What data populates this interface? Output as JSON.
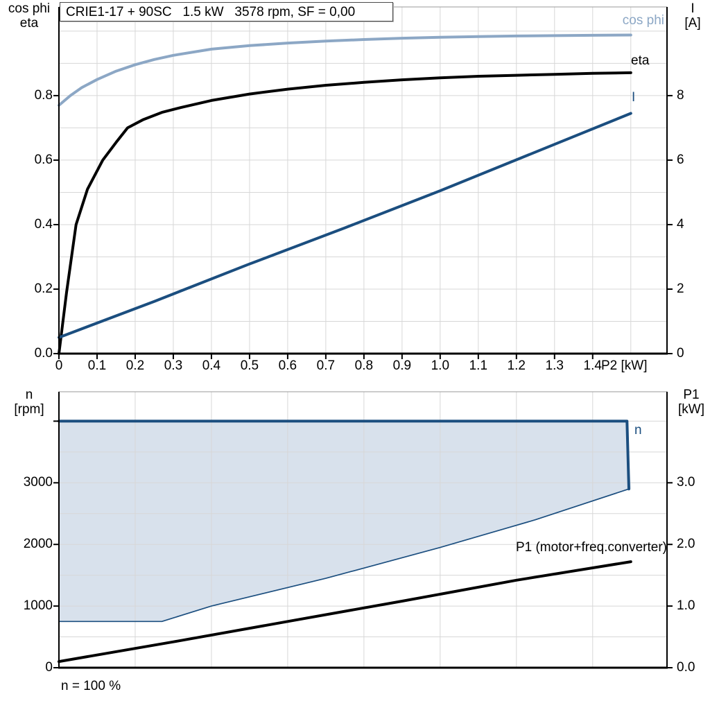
{
  "title_box": "CRIE1-17 + 90SC   1.5 kW   3578 rpm, SF = 0,00",
  "colors": {
    "black": "#000000",
    "dark_blue": "#1B4E7F",
    "light_blue": "#8CA7C5",
    "fill_blue": "#D8E1EC",
    "grid": "#D7D7D7",
    "frame": "#9A9A9A"
  },
  "top_chart": {
    "left_axis_title": "cos phi\neta",
    "right_axis_title": "I\n[A]",
    "x_axis_title": "P2 [kW]",
    "curve_labels": {
      "cos_phi": "cos phi",
      "eta": "eta",
      "current": "I"
    }
  },
  "bottom_chart": {
    "left_axis_title": "n\n[rpm]",
    "right_axis_title": "P1\n[kW]",
    "curve_labels": {
      "n": "n",
      "p1": "P1 (motor+freq.converter)"
    },
    "footnote": "n = 100 %"
  },
  "chart_data": [
    {
      "type": "line",
      "title": "CRIE1-17 + 90SC  1.5 kW  3578 rpm, SF = 0,00",
      "xlabel": "P2 [kW]",
      "grid": true,
      "x_range": [
        0,
        1.595
      ],
      "x_grid_step": 0.1,
      "xticks": {
        "values": [
          0,
          0.1,
          0.2,
          0.3,
          0.4,
          0.5,
          0.6,
          0.7,
          0.8,
          0.9,
          1.0,
          1.1,
          1.2,
          1.3,
          1.4
        ],
        "labels": [
          "0",
          "0.1",
          "0.2",
          "0.3",
          "0.4",
          "0.5",
          "0.6",
          "0.7",
          "0.8",
          "0.9",
          "1.0",
          "1.1",
          "1.2",
          "1.3",
          "1.4"
        ]
      },
      "left_axis": {
        "label": "cos phi / eta",
        "range": [
          0,
          1.075
        ],
        "grid_step": 0.1,
        "ticks": {
          "values": [
            0.0,
            0.2,
            0.4,
            0.6,
            0.8
          ],
          "labels": [
            "0.0",
            "0.2",
            "0.4",
            "0.6",
            "0.8"
          ]
        }
      },
      "right_axis": {
        "label": "I [A]",
        "range": [
          0,
          10.75
        ],
        "ticks": {
          "values": [
            0,
            2,
            4,
            6,
            8
          ],
          "labels": [
            "0",
            "2",
            "4",
            "6",
            "8"
          ]
        }
      },
      "series": [
        {
          "name": "cos phi",
          "axis": "left",
          "color": "light_blue",
          "width": 4,
          "points": [
            [
              0,
              0.77
            ],
            [
              0.03,
              0.8
            ],
            [
              0.06,
              0.825
            ],
            [
              0.1,
              0.85
            ],
            [
              0.15,
              0.876
            ],
            [
              0.2,
              0.896
            ],
            [
              0.25,
              0.912
            ],
            [
              0.3,
              0.925
            ],
            [
              0.4,
              0.944
            ],
            [
              0.5,
              0.955
            ],
            [
              0.6,
              0.963
            ],
            [
              0.7,
              0.969
            ],
            [
              0.8,
              0.974
            ],
            [
              0.9,
              0.978
            ],
            [
              1.0,
              0.981
            ],
            [
              1.1,
              0.983
            ],
            [
              1.2,
              0.985
            ],
            [
              1.3,
              0.986
            ],
            [
              1.4,
              0.987
            ],
            [
              1.5,
              0.988
            ]
          ]
        },
        {
          "name": "eta",
          "axis": "left",
          "color": "black",
          "width": 4,
          "points": [
            [
              0,
              0
            ],
            [
              0.02,
              0.19
            ],
            [
              0.045,
              0.4
            ],
            [
              0.075,
              0.51
            ],
            [
              0.115,
              0.6
            ],
            [
              0.15,
              0.655
            ],
            [
              0.18,
              0.7
            ],
            [
              0.22,
              0.725
            ],
            [
              0.27,
              0.748
            ],
            [
              0.32,
              0.763
            ],
            [
              0.4,
              0.785
            ],
            [
              0.5,
              0.805
            ],
            [
              0.6,
              0.82
            ],
            [
              0.7,
              0.832
            ],
            [
              0.8,
              0.841
            ],
            [
              0.9,
              0.849
            ],
            [
              1.0,
              0.855
            ],
            [
              1.1,
              0.86
            ],
            [
              1.2,
              0.863
            ],
            [
              1.3,
              0.866
            ],
            [
              1.4,
              0.869
            ],
            [
              1.5,
              0.871
            ]
          ]
        },
        {
          "name": "I",
          "axis": "right",
          "color": "dark_blue",
          "width": 4,
          "points": [
            [
              0,
              0.5
            ],
            [
              0.25,
              1.62
            ],
            [
              0.5,
              2.78
            ],
            [
              0.75,
              3.9
            ],
            [
              1.0,
              5.05
            ],
            [
              1.25,
              6.25
            ],
            [
              1.5,
              7.45
            ]
          ]
        }
      ]
    },
    {
      "type": "line+area",
      "xlabel": "",
      "footnote": "n = 100 %",
      "grid": true,
      "x_range": [
        0,
        1.595
      ],
      "x_grid_step": 0.2,
      "xticks": {
        "values": [],
        "labels": []
      },
      "left_axis": {
        "label": "n [rpm]",
        "range": [
          0,
          4477
        ],
        "grid_step": 500,
        "ticks": {
          "values": [
            0,
            1000,
            2000,
            3000,
            4000
          ],
          "labels": [
            "0",
            "1000",
            "2000",
            "3000",
            ""
          ]
        }
      },
      "right_axis": {
        "label": "P1 [kW]",
        "range": [
          0,
          4.477
        ],
        "ticks": {
          "values": [
            0,
            1,
            2,
            3
          ],
          "labels": [
            "0.0",
            "1.0",
            "2.0",
            "3.0"
          ]
        }
      },
      "area": {
        "name": "n operating envelope",
        "color": "fill_blue",
        "points": [
          [
            0,
            4000
          ],
          [
            1.49,
            4000
          ],
          [
            1.5,
            2900
          ],
          [
            1.25,
            2400
          ],
          [
            1.0,
            1950
          ],
          [
            0.7,
            1450
          ],
          [
            0.4,
            1000
          ],
          [
            0.27,
            750
          ],
          [
            0,
            750
          ]
        ]
      },
      "series": [
        {
          "name": "n max",
          "axis": "left",
          "color": "dark_blue",
          "width": 4,
          "points": [
            [
              0,
              4000
            ],
            [
              1.49,
              4000
            ],
            [
              1.495,
              2900
            ]
          ]
        },
        {
          "name": "n envelope lower limit",
          "axis": "left",
          "color": "dark_blue",
          "width": 1.7,
          "points": [
            [
              1.495,
              2900
            ],
            [
              1.25,
              2400
            ],
            [
              1.0,
              1950
            ],
            [
              0.7,
              1450
            ],
            [
              0.4,
              1000
            ],
            [
              0.27,
              750
            ],
            [
              0,
              750
            ]
          ]
        },
        {
          "name": "P1 (motor+freq.converter)",
          "axis": "right",
          "color": "black",
          "width": 4,
          "points": [
            [
              0,
              0.1
            ],
            [
              0.3,
              0.42
            ],
            [
              0.6,
              0.75
            ],
            [
              0.9,
              1.08
            ],
            [
              1.2,
              1.42
            ],
            [
              1.5,
              1.72
            ]
          ]
        }
      ]
    }
  ]
}
